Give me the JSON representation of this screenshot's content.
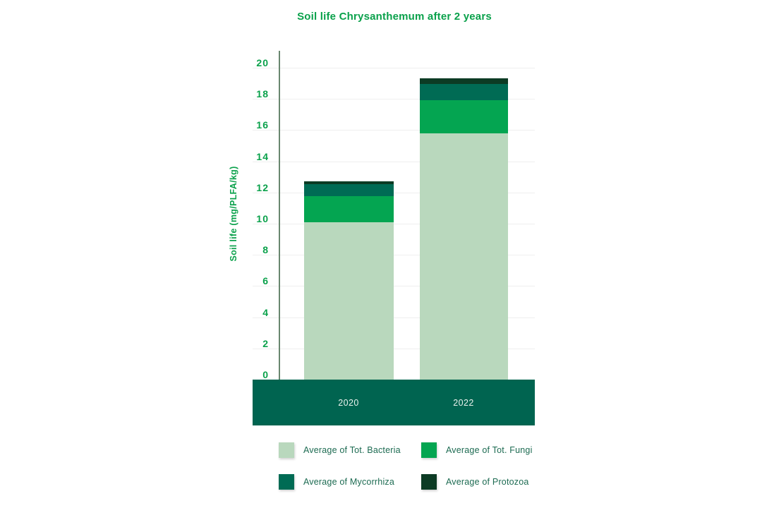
{
  "colors": {
    "accent-green": "#0aa14b",
    "band-green": "#006450",
    "band-label": "#eaf2ee",
    "legend-text": "#1d6b52",
    "grid-gray": "#efefef",
    "axis-line": "#69876f"
  },
  "chart_data": {
    "type": "bar",
    "stacked": true,
    "title": "Soil life Chrysanthemum after 2 years",
    "ylabel": "Soil life (mg/PLFA/kg)",
    "xlabel": "",
    "categories": [
      "2020",
      "2022"
    ],
    "series": [
      {
        "name": "Average of Tot. Bacteria",
        "values": [
          10.1,
          15.8
        ],
        "color": "#b9d8bd"
      },
      {
        "name": "Average of Tot. Fungi",
        "values": [
          1.65,
          2.1
        ],
        "color": "#04a551"
      },
      {
        "name": "Average of Mycorrhiza",
        "values": [
          0.8,
          1.05
        ],
        "color": "#006b54"
      },
      {
        "name": "Average of Protozoa",
        "values": [
          0.15,
          0.35
        ],
        "color": "#0c3b24"
      }
    ],
    "totals": [
      12.7,
      19.3
    ],
    "ylim": [
      0,
      20
    ],
    "yticks": [
      0,
      2,
      4,
      6,
      8,
      10,
      12,
      14,
      16,
      18,
      20
    ],
    "grid": true,
    "legend_position": "bottom"
  }
}
